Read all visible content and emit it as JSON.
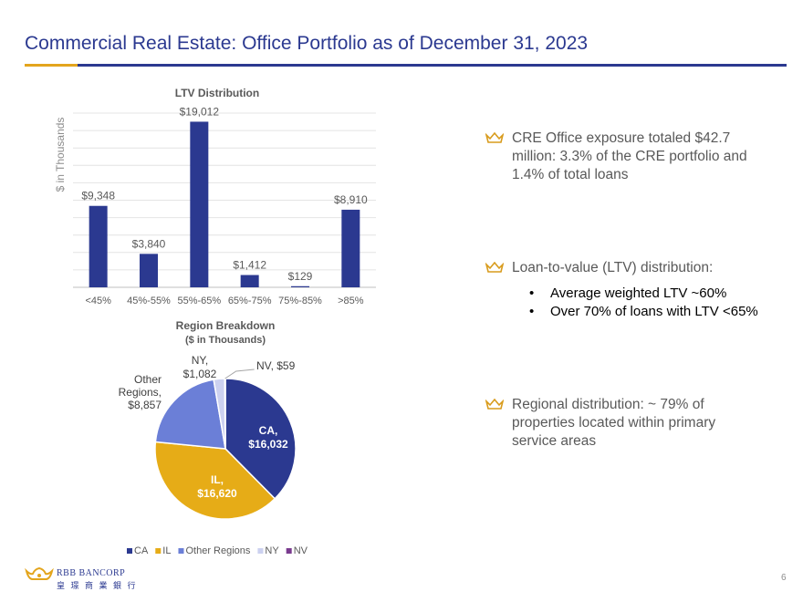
{
  "header": {
    "title": "Commercial Real Estate: Office Portfolio as of December 31, 2023"
  },
  "chart_data": [
    {
      "type": "bar",
      "title": "LTV Distribution",
      "ylabel": "$ in Thousands",
      "xlabel": "",
      "categories": [
        "<45%",
        "45%-55%",
        "55%-65%",
        "65%-75%",
        "75%-85%",
        ">85%"
      ],
      "values": [
        9348,
        3840,
        19012,
        1412,
        129,
        8910
      ],
      "data_labels": [
        "$9,348",
        "$3,840",
        "$19,012",
        "$1,412",
        "$129",
        "$8,910"
      ],
      "ylim": [
        0,
        20000
      ],
      "grid": true,
      "color": "#2b3990"
    },
    {
      "type": "pie",
      "title": "Region Breakdown",
      "subtitle": "($ in Thousands)",
      "categories": [
        "CA",
        "IL",
        "Other Regions",
        "NY",
        "NV"
      ],
      "values": [
        16032,
        16620,
        8857,
        1082,
        59
      ],
      "data_labels": [
        {
          "name": "CA,",
          "value": "$16,032"
        },
        {
          "name": "IL,",
          "value": "$16,620"
        },
        {
          "name": "Other Regions,",
          "value": "$8,857"
        },
        {
          "name": "NY,",
          "value": "$1,082"
        },
        {
          "name": "NV,",
          "value": "$59"
        }
      ],
      "colors": [
        "#2b3990",
        "#e6ac17",
        "#6b7fd7",
        "#ccd1f0",
        "#7a3b8f"
      ],
      "legend": "bottom"
    }
  ],
  "bullets": [
    {
      "text": "CRE Office exposure totaled $42.7 million:  3.3% of the CRE portfolio and 1.4% of total loans"
    },
    {
      "text": "Loan-to-value (LTV) distribution:",
      "sub": [
        "Average weighted LTV ~60%",
        "Over 70% of loans with LTV <65%"
      ]
    },
    {
      "text": "Regional distribution: ~ 79% of properties located within primary service areas"
    }
  ],
  "bullet_icon": "crown-icon",
  "sub_bullet_glyph": "•",
  "footer": {
    "logo_en": "RBB BANCORP",
    "logo_zh": "皇 璟 商 業 銀 行",
    "page_number": "6"
  }
}
